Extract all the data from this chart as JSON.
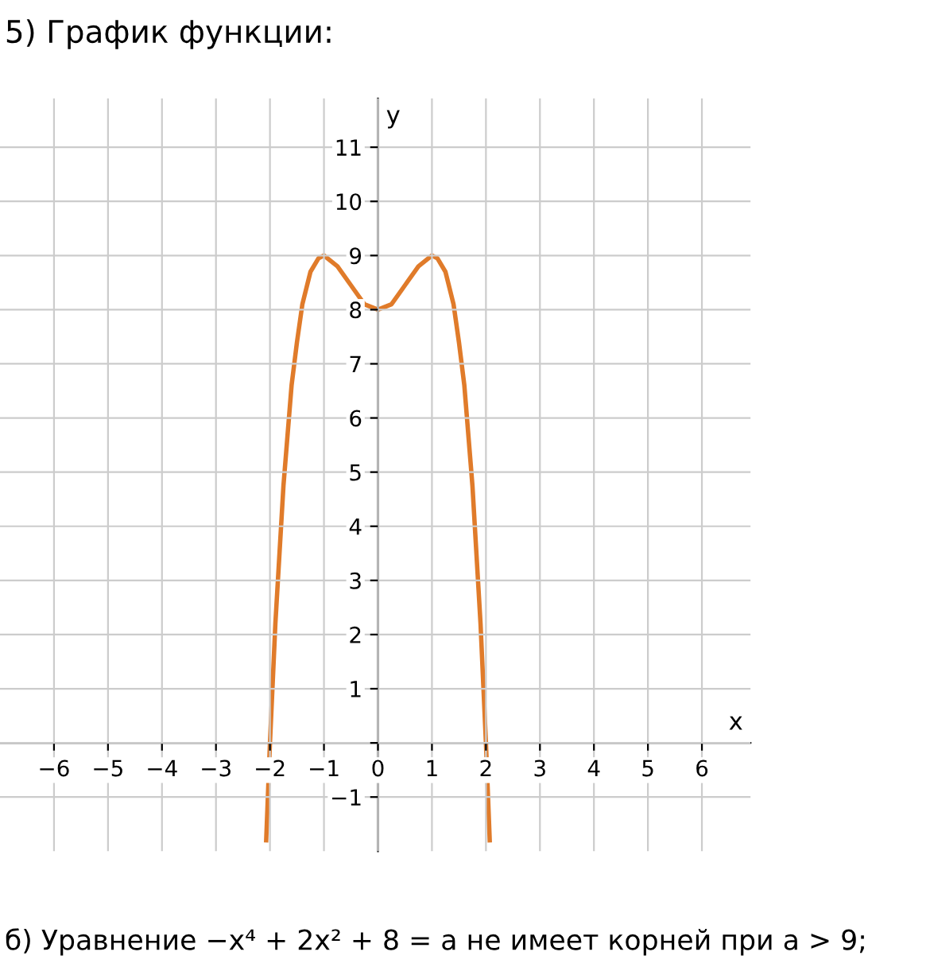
{
  "chart_data": {
    "type": "line",
    "title": "5) График функции:",
    "xlabel": "x",
    "ylabel": "y",
    "x": [
      -2.07,
      -2,
      -1.9,
      -1.75,
      -1.6,
      -1.5,
      -1.4,
      -1.25,
      -1.1,
      -1,
      -0.75,
      -0.5,
      -0.25,
      0,
      0.25,
      0.5,
      0.75,
      1,
      1.1,
      1.25,
      1.4,
      1.5,
      1.6,
      1.75,
      1.9,
      2,
      2.07
    ],
    "series": [
      {
        "color": "#e07b2a",
        "values": [
          -1.8,
          0,
          2.2,
          4.75,
          6.6,
          7.4,
          8.1,
          8.7,
          8.95,
          9,
          8.8,
          8.45,
          8.1,
          8,
          8.1,
          8.45,
          8.8,
          9,
          8.95,
          8.7,
          8.1,
          7.4,
          6.6,
          4.75,
          2.2,
          0,
          -1.8
        ]
      }
    ],
    "xlim": [
      -7,
      6.9
    ],
    "ylim": [
      -2,
      11.9
    ],
    "xticks": [
      -6,
      -5,
      -4,
      -3,
      -2,
      -1,
      0,
      1,
      2,
      3,
      4,
      5,
      6
    ],
    "yticks": [
      -1,
      {
        "value": 0,
        "label": null
      },
      1,
      2,
      3,
      4,
      5,
      6,
      7,
      8,
      9,
      10,
      11
    ],
    "grid": true,
    "marker": "none",
    "line_style": "solid",
    "annotations": [
      "б) Уравнение −x⁴ + 2x² + 8 = a не имеет корней при a > 9;"
    ]
  }
}
